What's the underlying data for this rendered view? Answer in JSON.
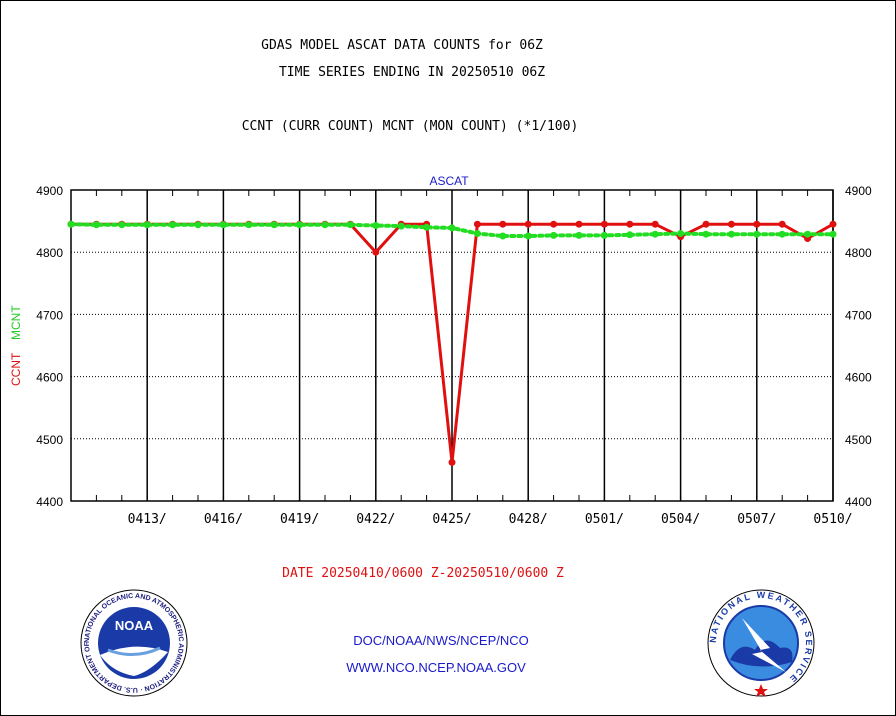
{
  "header": {
    "title_line1": "GDAS MODEL ASCAT DATA COUNTS for 06Z",
    "title_line2": "TIME SERIES ENDING IN 20250510 06Z",
    "subtitle": "CCNT (CURR COUNT) MCNT (MON COUNT) (*1/100)"
  },
  "footer": {
    "date_range": "DATE 20250410/0600 Z-20250510/0600 Z",
    "org_path": "DOC/NOAA/NWS/NCEP/NCO",
    "website": "WWW.NCO.NCEP.NOAA.GOV",
    "noaa_logo_text": "NOAA",
    "noaa_ring_text": "NATIONAL OCEANIC AND ATMOSPHERIC ADMINISTRATION · U.S. DEPARTMENT OF COMMERCE ·",
    "nws_ring_text": "NATIONAL WEATHER SERVICE"
  },
  "colors": {
    "ccnt": "#e01010",
    "mcnt": "#22dd22",
    "label_blue": "#1a1acc"
  },
  "chart_data": {
    "type": "line",
    "title": "ASCAT",
    "ylabel_parts": [
      "CCNT",
      "MCNT"
    ],
    "ylim": [
      4400,
      4900
    ],
    "yticks": [
      4400,
      4500,
      4600,
      4700,
      4800,
      4900
    ],
    "xlim": [
      "2025-04-10",
      "2025-05-10"
    ],
    "xtick_labels": [
      "0413/",
      "0416/",
      "0419/",
      "0422/",
      "0425/",
      "0428/",
      "0501/",
      "0504/",
      "0507/",
      "0510/"
    ],
    "xtick_dates": [
      "2025-04-13",
      "2025-04-16",
      "2025-04-19",
      "2025-04-22",
      "2025-04-25",
      "2025-04-28",
      "2025-05-01",
      "2025-05-04",
      "2025-05-07",
      "2025-05-10"
    ],
    "grid": true,
    "x": [
      "2025-04-10",
      "2025-04-11",
      "2025-04-12",
      "2025-04-13",
      "2025-04-14",
      "2025-04-15",
      "2025-04-16",
      "2025-04-17",
      "2025-04-18",
      "2025-04-19",
      "2025-04-20",
      "2025-04-21",
      "2025-04-22",
      "2025-04-23",
      "2025-04-24",
      "2025-04-25",
      "2025-04-26",
      "2025-04-27",
      "2025-04-28",
      "2025-04-29",
      "2025-04-30",
      "2025-05-01",
      "2025-05-02",
      "2025-05-03",
      "2025-05-04",
      "2025-05-05",
      "2025-05-06",
      "2025-05-07",
      "2025-05-08",
      "2025-05-09",
      "2025-05-10"
    ],
    "series": [
      {
        "name": "CCNT",
        "values": [
          4845,
          4845,
          4845,
          4845,
          4845,
          4845,
          4845,
          4845,
          4845,
          4845,
          4845,
          4845,
          4800,
          4845,
          4845,
          4462,
          4845,
          4845,
          4845,
          4845,
          4845,
          4845,
          4845,
          4845,
          4825,
          4845,
          4845,
          4845,
          4845,
          4822,
          4845
        ]
      },
      {
        "name": "MCNT",
        "values": [
          4845,
          4844,
          4844,
          4844,
          4844,
          4844,
          4844,
          4844,
          4844,
          4844,
          4844,
          4844,
          4843,
          4842,
          4840,
          4839,
          4830,
          4826,
          4826,
          4827,
          4827,
          4827,
          4828,
          4829,
          4830,
          4829,
          4829,
          4829,
          4829,
          4829,
          4829
        ]
      }
    ]
  }
}
